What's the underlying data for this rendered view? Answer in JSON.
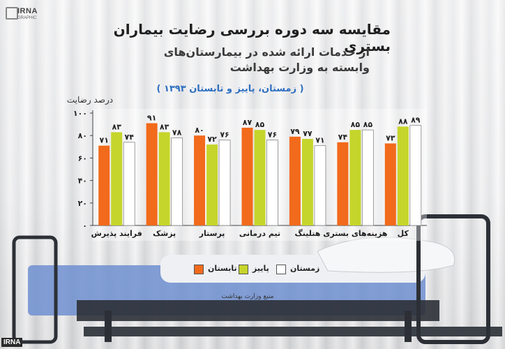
{
  "brand": {
    "logo_text": "IRNA",
    "logo_sub": "GRAPHIC",
    "footer_logo": "IRNA"
  },
  "title": "مقایسه سه دوره بررسی رضایت بیماران بستری",
  "subtitle_line1": "از خدمات ارائه شده در بیمارستان‌های",
  "subtitle_line2": "وابسته به وزارت بهداشت",
  "period": "( زمستان، پاییز و تابستان ۱۳۹۳ )",
  "source": "منبع  وزارت بهداشت",
  "colors": {
    "summer": "#f26a1b",
    "autumn": "#c6d52b",
    "winter": "#ffffff",
    "period_text": "#2f6fc0"
  },
  "chart_data": {
    "type": "bar",
    "title": "مقایسه سه دوره بررسی رضایت بیماران بستری",
    "ylabel": "درصد رضایت",
    "xlabel": "",
    "ylim": [
      0,
      100
    ],
    "yticks": [
      "۰",
      "۲۰",
      "۴۰",
      "۶۰",
      "۸۰",
      "۱۰۰"
    ],
    "ytick_values": [
      0,
      20,
      40,
      60,
      80,
      100
    ],
    "grid": false,
    "legend_position": "bottom",
    "categories": [
      "فرایند پذیرش",
      "پزشک",
      "پرستار",
      "تیم درمانی",
      "هتلینگ",
      "هزینه‌های بستری",
      "کل"
    ],
    "series": [
      {
        "name": "تابستان",
        "color": "#f26a1b",
        "values": [
          71,
          91,
          80,
          87,
          79,
          74,
          73
        ],
        "labels": [
          "۷۱",
          "۹۱",
          "۸۰",
          "۸۷",
          "۷۹",
          "۷۴",
          "۷۳"
        ]
      },
      {
        "name": "پاییز",
        "color": "#c6d52b",
        "values": [
          83,
          83,
          72,
          85,
          77,
          85,
          88
        ],
        "labels": [
          "۸۳",
          "۸۳",
          "۷۲",
          "۸۵",
          "۷۷",
          "۸۵",
          "۸۸"
        ]
      },
      {
        "name": "زمستان",
        "color": "#ffffff",
        "values": [
          74,
          78,
          76,
          76,
          71,
          85,
          89
        ],
        "labels": [
          "۷۴",
          "۷۸",
          "۷۶",
          "۷۶",
          "۷۱",
          "۸۵",
          "۸۹"
        ]
      }
    ]
  }
}
